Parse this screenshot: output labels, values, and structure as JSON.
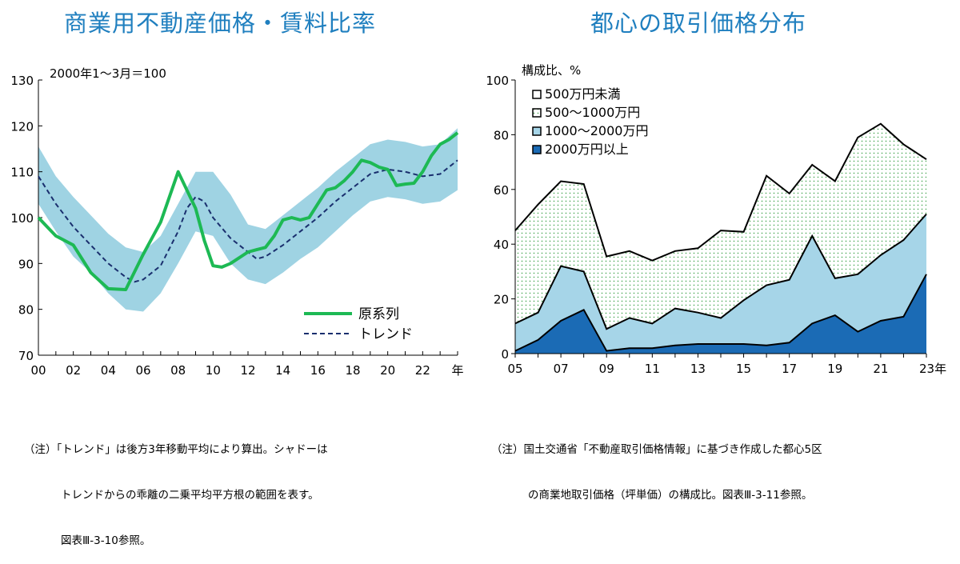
{
  "left": {
    "title": "商業用不動産価格・賃料比率",
    "unit_note": "2000年1～3月＝100",
    "note_lines": [
      "（注）「トレンド」は後方3年移動平均により算出。シャドーは",
      "トレンドからの乖離の二乗平均平方根の範囲を表す。",
      "図表Ⅲ-3-10参照。"
    ]
  },
  "right": {
    "title": "都心の取引価格分布",
    "note_lines": [
      "（注）国土交通省「不動産取引価格情報」に基づき作成した都心5区",
      "の商業地取引価格（坪単価）の構成比。図表Ⅲ-3-11参照。"
    ]
  },
  "colors": {
    "title": "#1f7fbf",
    "series_green": "#1db954",
    "trend_navy": "#1a2f6e",
    "shade": "#9fd3e3",
    "area_dark": "#1b6bb5",
    "area_light": "#a6d5e8",
    "area_dots": "#2e9a3a"
  },
  "chart_data": [
    {
      "type": "line",
      "ylim": [
        70,
        130
      ],
      "yticks": [
        "70",
        "80",
        "90",
        "100",
        "110",
        "120",
        "130"
      ],
      "xlim": [
        2000,
        2024
      ],
      "xticks": [
        "00",
        "02",
        "04",
        "06",
        "08",
        "10",
        "12",
        "14",
        "16",
        "18",
        "20",
        "22"
      ],
      "x_unit_label": "年",
      "legend_placement": "bottom-right",
      "series": [
        {
          "name": "原系列",
          "x": [
            2000,
            2000.5,
            2001,
            2002,
            2003,
            2004,
            2005,
            2006,
            2007,
            2008,
            2009,
            2009.5,
            2010,
            2010.5,
            2011,
            2012,
            2012.5,
            2013,
            2013.5,
            2014,
            2014.5,
            2015,
            2015.5,
            2016,
            2016.5,
            2017,
            2017.5,
            2018,
            2018.5,
            2019,
            2019.5,
            2020,
            2020.5,
            2021,
            2021.5,
            2022,
            2022.5,
            2023,
            2023.5,
            2024
          ],
          "values": [
            100,
            98,
            96,
            94,
            88,
            84.5,
            84.3,
            92,
            99,
            110,
            102,
            95,
            89.5,
            89.2,
            90,
            92.5,
            93,
            93.5,
            96,
            99.5,
            100,
            99.5,
            100,
            103,
            106,
            106.5,
            108,
            110,
            112.5,
            112,
            111,
            110.5,
            107,
            107.3,
            107.5,
            110,
            113.5,
            116,
            117,
            118.5
          ]
        },
        {
          "name": "トレンド",
          "x": [
            2000,
            2001,
            2002,
            2003,
            2004,
            2005,
            2005.5,
            2006,
            2007,
            2008,
            2008.5,
            2009,
            2009.5,
            2010,
            2011,
            2012,
            2012.5,
            2013,
            2014,
            2015,
            2016,
            2017,
            2018,
            2019,
            2020,
            2021,
            2022,
            2023,
            2024
          ],
          "values": [
            109,
            103,
            98,
            94,
            90,
            87,
            86,
            86.5,
            89.5,
            97,
            102,
            104.5,
            103.5,
            100,
            95.5,
            92.5,
            91,
            91.5,
            94,
            97,
            100,
            103.5,
            106.5,
            109.5,
            110.5,
            110,
            109,
            109.5,
            112.5
          ]
        }
      ],
      "band": {
        "x": [
          2000,
          2001,
          2002,
          2003,
          2004,
          2005,
          2006,
          2007,
          2008,
          2009,
          2010,
          2011,
          2012,
          2013,
          2014,
          2015,
          2016,
          2017,
          2018,
          2019,
          2020,
          2021,
          2022,
          2023,
          2024
        ],
        "upper": [
          115.5,
          109,
          104.5,
          100.5,
          96.5,
          93.5,
          92.5,
          96,
          103,
          110,
          110,
          105,
          98.5,
          97.5,
          100.5,
          103.5,
          106.5,
          110,
          113,
          116,
          117,
          116.5,
          115.5,
          116,
          119.5
        ],
        "lower": [
          103,
          97,
          91.5,
          88,
          83.5,
          80,
          79.5,
          83.5,
          90,
          97,
          96,
          90,
          86.5,
          85.5,
          88,
          91,
          93.5,
          97,
          100.5,
          103.5,
          104.5,
          104,
          103,
          103.5,
          106
        ]
      }
    },
    {
      "type": "area",
      "stacked": true,
      "ylabel": "構成比、%",
      "ylim": [
        0,
        100
      ],
      "yticks": [
        "0",
        "20",
        "40",
        "60",
        "80",
        "100"
      ],
      "x": [
        2005,
        2006,
        2007,
        2008,
        2009,
        2010,
        2011,
        2012,
        2013,
        2014,
        2015,
        2016,
        2017,
        2018,
        2019,
        2020,
        2021,
        2022,
        2023
      ],
      "xticks": [
        "05",
        "07",
        "09",
        "11",
        "13",
        "15",
        "17",
        "19",
        "21",
        "23年"
      ],
      "legend_placement": "top-left",
      "series": [
        {
          "name": "2000万円以上",
          "values": [
            1,
            5,
            12,
            16,
            1,
            2,
            2,
            3,
            3.5,
            3.5,
            3.5,
            3,
            4,
            11,
            14,
            8,
            12,
            13.5,
            29
          ]
        },
        {
          "name": "1000～2000万円",
          "values": [
            10,
            10,
            20,
            14,
            8,
            11,
            9,
            13.5,
            11.5,
            9.5,
            16,
            22,
            23,
            32,
            13.5,
            21,
            24,
            28,
            22
          ]
        },
        {
          "name": "500～1000万円",
          "values": [
            34,
            39.5,
            31,
            32,
            26.5,
            24.5,
            23,
            21,
            23.5,
            32,
            25,
            40,
            31.5,
            26,
            35.5,
            50,
            48,
            35,
            20
          ]
        },
        {
          "name": "500万円未満",
          "values": [
            55,
            45.5,
            37,
            38,
            64.5,
            62.5,
            66,
            62.5,
            61.5,
            55,
            55.5,
            35,
            41.5,
            31,
            37,
            21,
            16,
            23.5,
            29
          ]
        }
      ]
    }
  ]
}
